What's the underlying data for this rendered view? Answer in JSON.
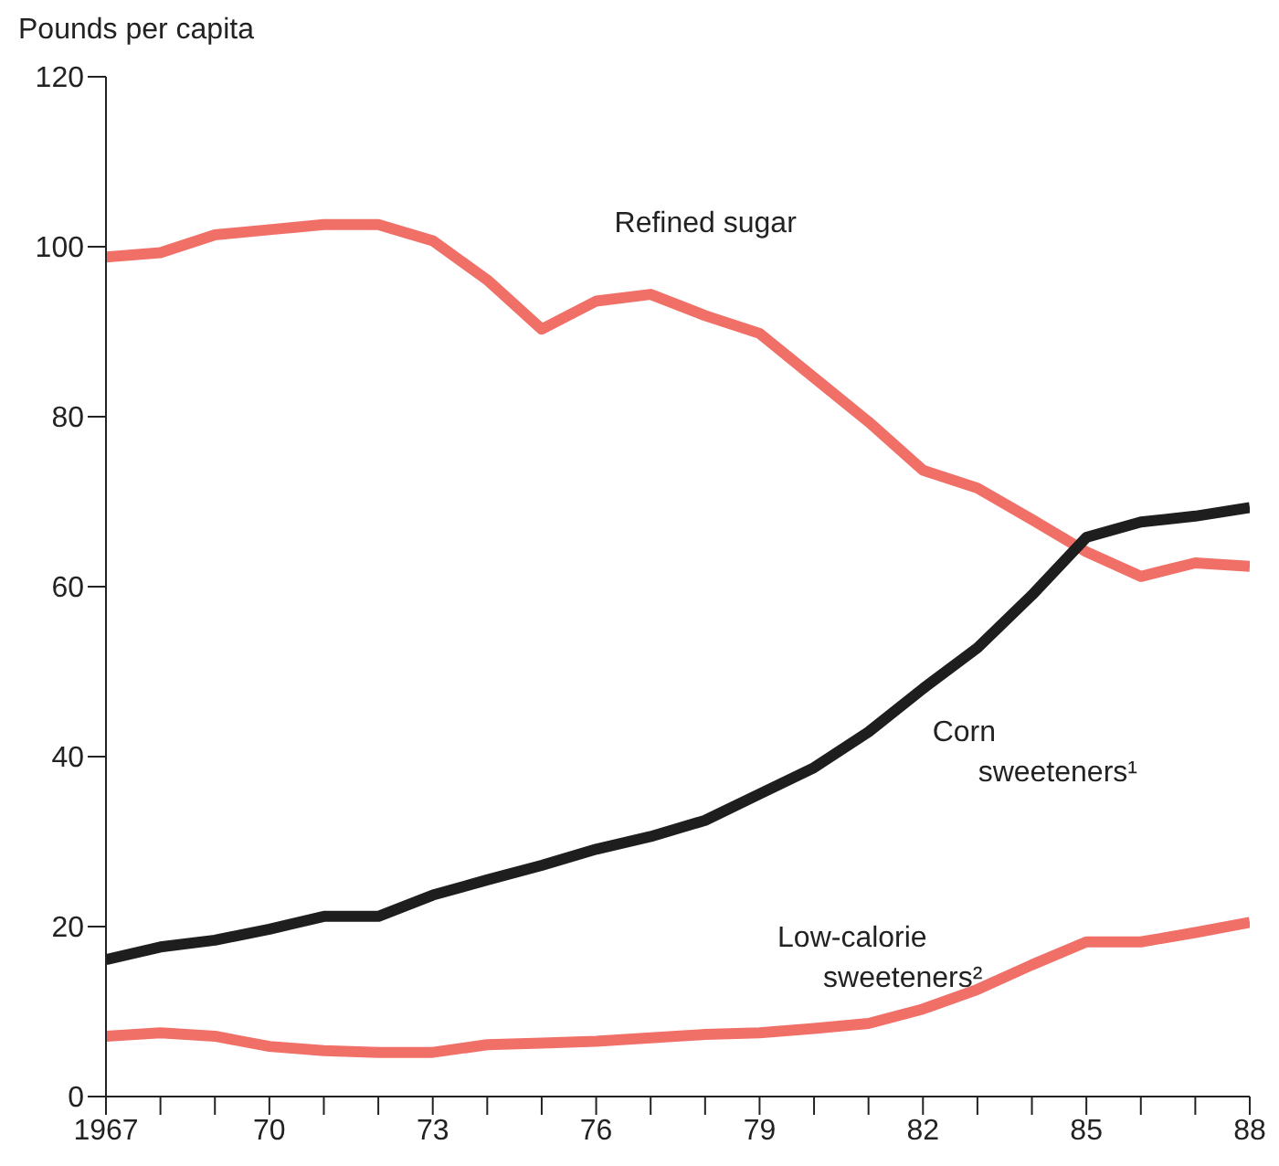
{
  "chart_data": {
    "type": "line",
    "ylabel": "Pounds per capita",
    "x": [
      1967,
      1968,
      1969,
      1970,
      1971,
      1972,
      1973,
      1974,
      1975,
      1976,
      1977,
      1978,
      1979,
      1980,
      1981,
      1982,
      1983,
      1984,
      1985,
      1986,
      1987,
      1988
    ],
    "xlim": [
      1967,
      1988
    ],
    "xticks": [
      {
        "value": 1967,
        "label": "1967"
      },
      {
        "value": 1968,
        "label": null
      },
      {
        "value": 1969,
        "label": null
      },
      {
        "value": 1970,
        "label": "70"
      },
      {
        "value": 1971,
        "label": null
      },
      {
        "value": 1972,
        "label": null
      },
      {
        "value": 1973,
        "label": "73"
      },
      {
        "value": 1974,
        "label": null
      },
      {
        "value": 1975,
        "label": null
      },
      {
        "value": 1976,
        "label": "76"
      },
      {
        "value": 1977,
        "label": null
      },
      {
        "value": 1978,
        "label": null
      },
      {
        "value": 1979,
        "label": "79"
      },
      {
        "value": 1980,
        "label": null
      },
      {
        "value": 1981,
        "label": null
      },
      {
        "value": 1982,
        "label": "82"
      },
      {
        "value": 1983,
        "label": null
      },
      {
        "value": 1984,
        "label": null
      },
      {
        "value": 1985,
        "label": "85"
      },
      {
        "value": 1986,
        "label": null
      },
      {
        "value": 1987,
        "label": null
      },
      {
        "value": 1988,
        "label": "88"
      }
    ],
    "ylim": [
      0,
      120
    ],
    "yticks": [
      0,
      20,
      40,
      60,
      80,
      100,
      120
    ],
    "grid": false,
    "legend": false,
    "marker": "none",
    "line_style": "solid",
    "series": [
      {
        "name": "Refined sugar",
        "color": "#f07068",
        "values": [
          98.8,
          99.3,
          101.4,
          102,
          102.6,
          102.6,
          100.7,
          96.1,
          90.3,
          93.6,
          94.4,
          91.9,
          89.8,
          84.6,
          79.4,
          73.7,
          71.6,
          67.9,
          64.1,
          61.2,
          62.8,
          62.4
        ]
      },
      {
        "name": "Corn sweeteners¹",
        "color": "#1e1e1e",
        "values": [
          16.1,
          17.6,
          18.4,
          19.7,
          21.2,
          21.2,
          23.7,
          25.5,
          27.2,
          29.1,
          30.6,
          32.5,
          35.6,
          38.7,
          42.9,
          48,
          52.8,
          59,
          65.8,
          67.6,
          68.3,
          69.3
        ]
      },
      {
        "name": "Low-calorie sweeteners²",
        "color": "#f07068",
        "values": [
          7.1,
          7.5,
          7.1,
          5.9,
          5.4,
          5.2,
          5.2,
          6.1,
          6.3,
          6.5,
          6.9,
          7.3,
          7.5,
          8,
          8.6,
          10.3,
          12.6,
          15.5,
          18.2,
          18.2,
          19.3,
          20.5
        ]
      }
    ]
  }
}
